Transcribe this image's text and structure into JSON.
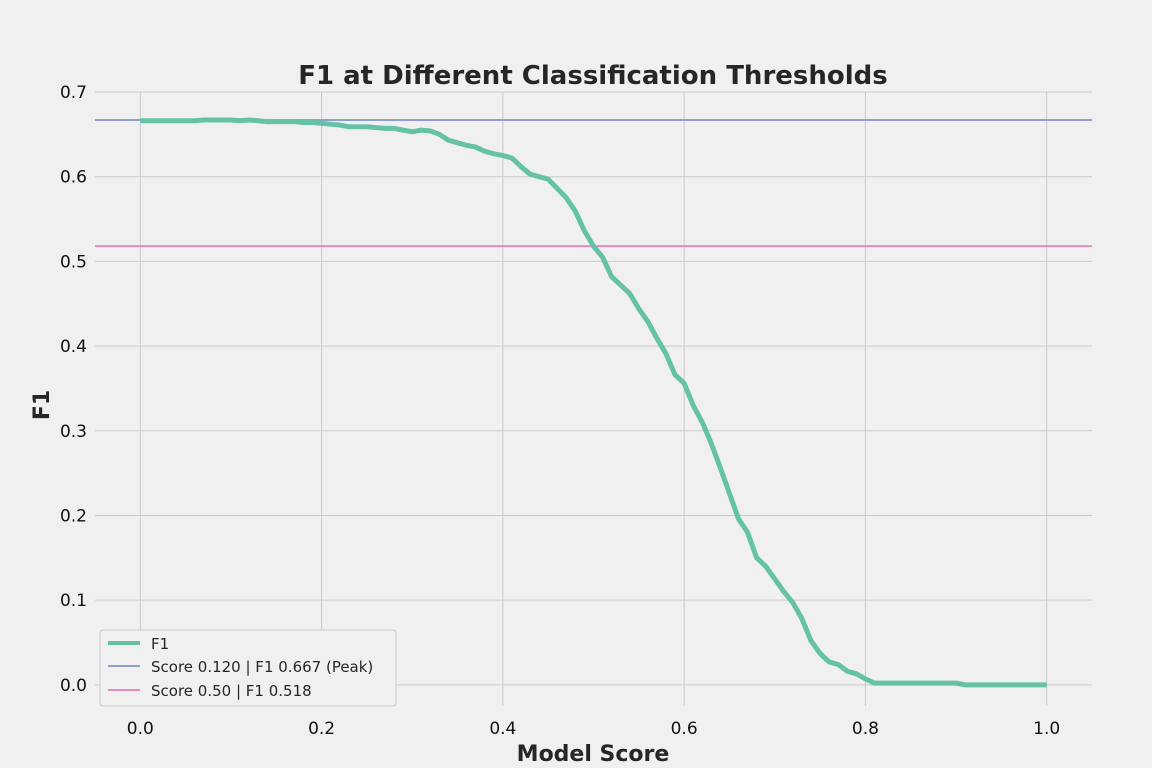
{
  "chart_data": {
    "type": "line",
    "title": "F1 at Different Classification Thresholds",
    "xlabel": "Model Score",
    "ylabel": "F1",
    "xlim": [
      -0.05,
      1.05
    ],
    "ylim": [
      -0.025,
      0.7
    ],
    "x_ticks": [
      "0.0",
      "0.2",
      "0.4",
      "0.6",
      "0.8",
      "1.0"
    ],
    "y_ticks": [
      "0.0",
      "0.1",
      "0.2",
      "0.3",
      "0.4",
      "0.5",
      "0.6",
      "0.7"
    ],
    "grid": true,
    "legend_position": "lower-left",
    "series": [
      {
        "name": "F1",
        "color": "#66c2a5",
        "x": [
          0.0,
          0.01,
          0.02,
          0.03,
          0.04,
          0.05,
          0.06,
          0.07,
          0.08,
          0.09,
          0.1,
          0.11,
          0.12,
          0.13,
          0.14,
          0.15,
          0.16,
          0.17,
          0.18,
          0.19,
          0.2,
          0.21,
          0.22,
          0.23,
          0.24,
          0.25,
          0.26,
          0.27,
          0.28,
          0.29,
          0.3,
          0.31,
          0.32,
          0.33,
          0.34,
          0.35,
          0.36,
          0.37,
          0.38,
          0.39,
          0.4,
          0.41,
          0.42,
          0.43,
          0.44,
          0.45,
          0.46,
          0.47,
          0.48,
          0.49,
          0.5,
          0.51,
          0.52,
          0.53,
          0.54,
          0.55,
          0.56,
          0.57,
          0.58,
          0.59,
          0.6,
          0.61,
          0.62,
          0.63,
          0.64,
          0.65,
          0.66,
          0.67,
          0.68,
          0.69,
          0.7,
          0.71,
          0.72,
          0.73,
          0.74,
          0.75,
          0.76,
          0.77,
          0.78,
          0.79,
          0.8,
          0.81,
          0.82,
          0.83,
          0.84,
          0.85,
          0.86,
          0.87,
          0.88,
          0.89,
          0.9,
          0.91,
          0.92,
          0.93,
          0.94,
          0.95,
          0.96,
          0.97,
          0.98,
          0.99,
          1.0
        ],
        "y": [
          0.666,
          0.666,
          0.666,
          0.666,
          0.666,
          0.666,
          0.666,
          0.667,
          0.667,
          0.667,
          0.667,
          0.666,
          0.667,
          0.666,
          0.665,
          0.665,
          0.665,
          0.665,
          0.664,
          0.664,
          0.663,
          0.662,
          0.661,
          0.659,
          0.659,
          0.659,
          0.658,
          0.657,
          0.657,
          0.655,
          0.653,
          0.655,
          0.654,
          0.65,
          0.643,
          0.64,
          0.637,
          0.635,
          0.63,
          0.627,
          0.625,
          0.622,
          0.612,
          0.603,
          0.6,
          0.597,
          0.586,
          0.575,
          0.559,
          0.536,
          0.518,
          0.505,
          0.482,
          0.472,
          0.462,
          0.444,
          0.429,
          0.409,
          0.391,
          0.366,
          0.356,
          0.33,
          0.31,
          0.285,
          0.256,
          0.226,
          0.196,
          0.18,
          0.15,
          0.14,
          0.125,
          0.11,
          0.097,
          0.078,
          0.052,
          0.037,
          0.027,
          0.024,
          0.016,
          0.013,
          0.007,
          0.002,
          0.002,
          0.002,
          0.002,
          0.002,
          0.002,
          0.002,
          0.002,
          0.002,
          0.002,
          0.0,
          0.0,
          0.0,
          0.0,
          0.0,
          0.0,
          0.0,
          0.0,
          0.0,
          0.0
        ]
      }
    ],
    "reference_lines": [
      {
        "name": "Score 0.120 | F1 0.667 (Peak)",
        "y": 0.667,
        "color": "#8da0cb"
      },
      {
        "name": "Score 0.50 | F1 0.518",
        "y": 0.518,
        "color": "#e78ac3"
      }
    ]
  }
}
